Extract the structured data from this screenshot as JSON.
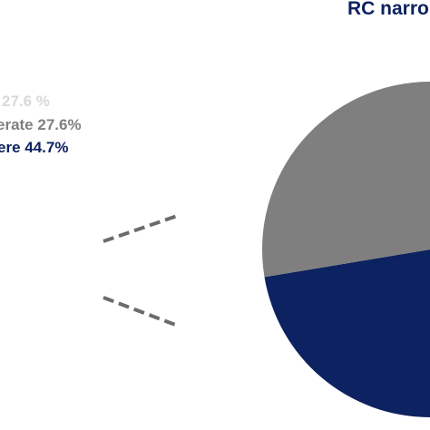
{
  "chart_data": {
    "type": "pie",
    "title": "RC narro",
    "legend": {
      "placement": "left",
      "entries": [
        {
          "label": "27.6 %",
          "value": 27.6,
          "color": "#d9d9d9"
        },
        {
          "label": "erate 27.6%",
          "value": 27.6,
          "color": "#7f7f7f"
        },
        {
          "label": "ere 44.7%",
          "value": 44.7,
          "color": "#0d2260"
        }
      ]
    },
    "slices": [
      {
        "value": 27.6,
        "color": "#d9d9d9"
      },
      {
        "value": 27.6,
        "color": "#7f7f7f"
      },
      {
        "value": 44.7,
        "color": "#0d2260"
      }
    ],
    "visible_slice_color": "#0d2260",
    "connector_style": "dashed",
    "connector_color": "#6b6b6b"
  },
  "colors": {
    "title": "#0d2260",
    "background": "#ffffff"
  }
}
